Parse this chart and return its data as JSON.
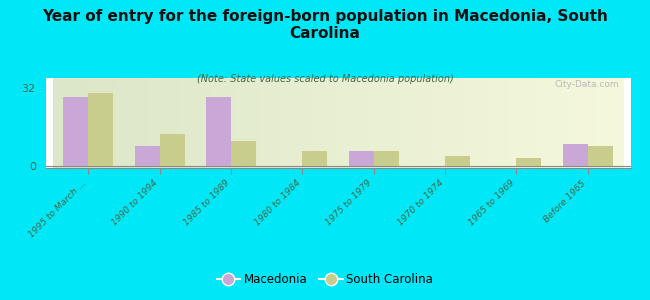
{
  "title": "Year of entry for the foreign-born population in Macedonia, South\nCarolina",
  "subtitle": "(Note: State values scaled to Macedonia population)",
  "categories": [
    "1995 to March ...",
    "1990 to 1994",
    "1985 to 1989",
    "1980 to 1984",
    "1975 to 1979",
    "1970 to 1974",
    "1965 to 1969",
    "Before 1965"
  ],
  "macedonia_values": [
    28,
    8,
    28,
    0,
    6,
    0,
    0,
    9
  ],
  "sc_values": [
    30,
    13,
    10,
    6,
    6,
    4,
    3,
    8
  ],
  "macedonia_color": "#c9a8d8",
  "sc_color": "#c8cc8c",
  "background_color": "#00e8f8",
  "yticks": [
    0,
    32
  ],
  "ylim": [
    -1,
    36
  ],
  "bar_width": 0.35,
  "watermark": "City-Data.com",
  "legend_macedonia": "Macedonia",
  "legend_sc": "South Carolina"
}
